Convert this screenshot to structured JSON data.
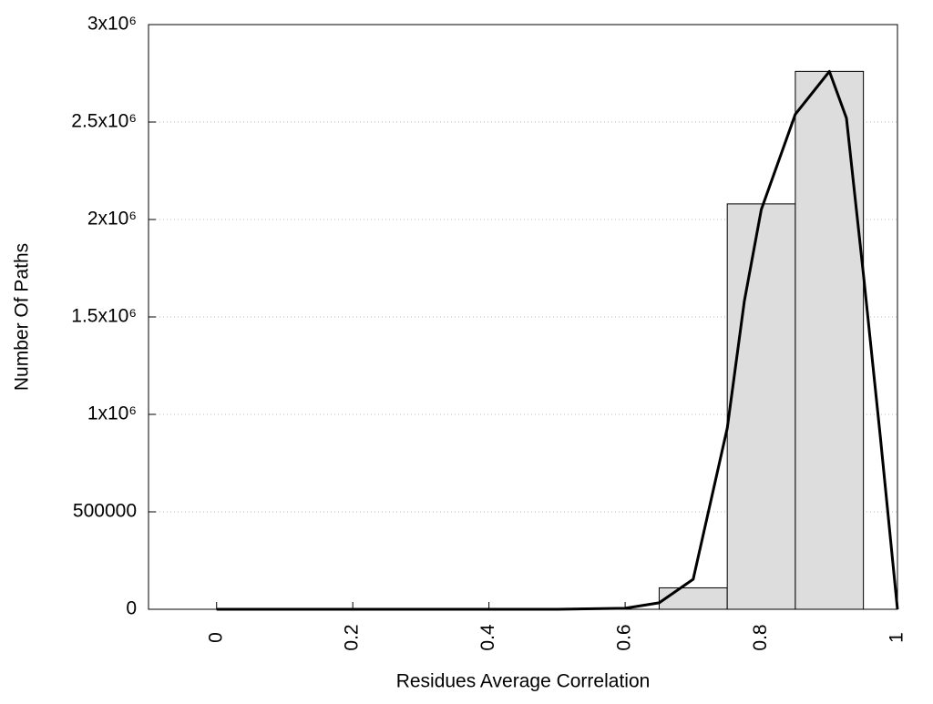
{
  "chart_data": {
    "type": "histogram",
    "xlabel": "Residues Average Correlation",
    "ylabel": "Number Of Paths",
    "bins": [
      0.65,
      0.75,
      0.85,
      0.95
    ],
    "counts": [
      110000,
      2080000,
      2760000
    ],
    "color": "#dddddd",
    "edge_color": "#000000",
    "curve": {
      "x": [
        0,
        0.1,
        0.2,
        0.3,
        0.4,
        0.5,
        0.6,
        0.625,
        0.65,
        0.7,
        0.75,
        0.775,
        0.8,
        0.85,
        0.9,
        0.925,
        0.95,
        0.975,
        1.0
      ],
      "values": [
        0,
        0,
        0,
        0,
        0,
        0,
        5000,
        19000,
        33000,
        154000,
        930000,
        1580000,
        2050000,
        2540000,
        2760000,
        2520000,
        1720000,
        880000,
        0
      ],
      "color": "#000000"
    },
    "xlim": [
      -0.1,
      1.0
    ],
    "ylim": [
      0,
      3000000
    ],
    "xticks": [
      0,
      0.2,
      0.4,
      0.6,
      0.8,
      1
    ],
    "yticks": [
      0,
      {
        "value": 500000,
        "label": "500000"
      },
      {
        "value": 1000000,
        "label": "1x10⁶"
      },
      {
        "value": 1500000,
        "label": "1.5x10⁶"
      },
      {
        "value": 2000000,
        "label": "2x10⁶"
      },
      {
        "value": 2500000,
        "label": "2.5x10⁶"
      },
      {
        "value": 3000000,
        "label": "3x10⁶"
      }
    ],
    "grid": true
  }
}
